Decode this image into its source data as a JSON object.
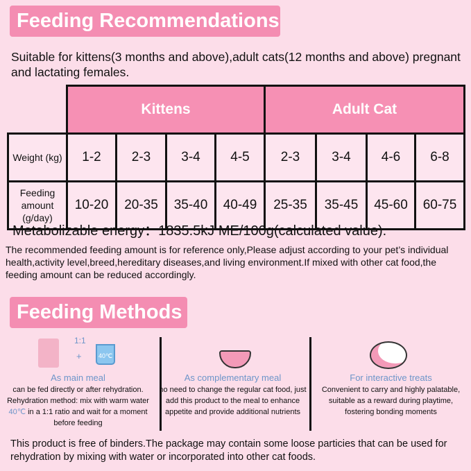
{
  "recommendations": {
    "title": "Feeding Recommendations",
    "subtitle": "Suitable for kittens(3 months and above),adult cats(12 months and above) pregnant and lactating females.",
    "table": {
      "groups": [
        "Kittens",
        "Adult Cat"
      ],
      "row_labels": [
        "Weight (kg)",
        "Feeding amount (g/day)"
      ],
      "weight": [
        "1-2",
        "2-3",
        "3-4",
        "4-5",
        "2-3",
        "3-4",
        "4-6",
        "6-8"
      ],
      "amount": [
        "10-20",
        "20-35",
        "35-40",
        "40-49",
        "25-35",
        "35-45",
        "45-60",
        "60-75"
      ]
    },
    "energy": "Metabolizable energy：1835.5kJ  ME/100g(calculated value).",
    "note": "The recommended feeding amount is for reference only,Please adjust according to your pet’s individual  health,activity  level,breed,hereditary diseases,and living environment.If mixed with other cat food,the feeding amount can be reduced accordingly."
  },
  "methods": {
    "title": "Feeding Methods",
    "ratio": "1:1",
    "plus": "+",
    "temp": "40℃",
    "items": [
      {
        "heading": "As main meal",
        "text_a": "can be fed directly or after rehydration. Rehydration method: mix with warm water ",
        "highlight": "40℃",
        "text_b": " in a 1:1 ratio and wait for a moment before feeding"
      },
      {
        "heading": "As complementary meal",
        "text_a": "no need to change the regular cat food, just add this product to the meal to enhance appetite and provide additional nutrients"
      },
      {
        "heading": "For interactive treats",
        "text_a": "Convenient to carry and highly palatable, suitable as a reward during playtime, fostering bonding moments"
      }
    ],
    "footer": "This product is free of binders.The package may contain some loose particies that can be used for rehydration  by mixing with water or incorporated  into other cat  foods."
  },
  "colors": {
    "background": "#fcdde9",
    "accent": "#f48db2",
    "heading_blue": "#6d95c9"
  }
}
